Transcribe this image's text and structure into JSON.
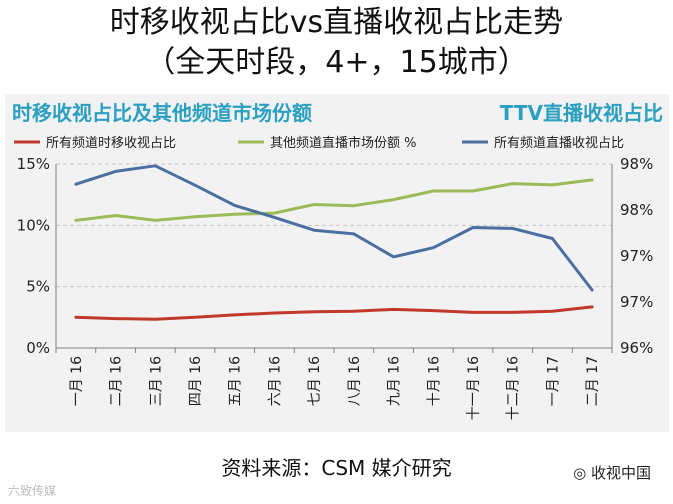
{
  "page": {
    "title_line1": "时移收视占比vs直播收视占比走势",
    "title_line2": "（全天时段，4+，15城市）",
    "left_subtitle": "时移收视占比及其他频道市场份额",
    "right_subtitle": "TTV直播收视占比",
    "source": "资料来源：CSM 媒介研究",
    "watermark": "收视中国",
    "watermark2": "六致传媒"
  },
  "chart_data": {
    "type": "line",
    "categories": [
      "一月 16",
      "二月 16",
      "三月 16",
      "四月 16",
      "五月 16",
      "六月 16",
      "七月 16",
      "八月 16",
      "九月 16",
      "十月 16",
      "十一月 16",
      "十二月 16",
      "一月 17",
      "二月 17"
    ],
    "y_left": {
      "ticks": [
        "0%",
        "5%",
        "10%",
        "15%"
      ],
      "range": [
        0,
        15
      ]
    },
    "y_right": {
      "ticks": [
        "96%",
        "97%",
        "97%",
        "98%",
        "98%"
      ],
      "range": [
        96.0,
        98.0
      ]
    },
    "legend_position": "top",
    "grid": true,
    "series": [
      {
        "name": "所有频道时移收视占比",
        "axis": "left",
        "color": "#c0392b",
        "values": [
          2.5,
          2.4,
          2.35,
          2.5,
          2.7,
          2.85,
          2.95,
          3.0,
          3.15,
          3.05,
          2.9,
          2.9,
          3.0,
          3.35
        ]
      },
      {
        "name": "其他频道直播市场份额 %",
        "axis": "left",
        "color": "#9bbb59",
        "values": [
          10.4,
          10.8,
          10.4,
          10.7,
          10.9,
          11.0,
          11.7,
          11.6,
          12.1,
          12.8,
          12.8,
          13.4,
          13.3,
          13.7
        ]
      },
      {
        "name": "所有频道直播收视占比",
        "axis": "right",
        "color": "#4a6fa0",
        "values": [
          97.78,
          97.92,
          97.98,
          97.77,
          97.55,
          97.42,
          97.28,
          97.24,
          96.99,
          97.09,
          97.31,
          97.3,
          97.19,
          96.63
        ]
      }
    ]
  }
}
